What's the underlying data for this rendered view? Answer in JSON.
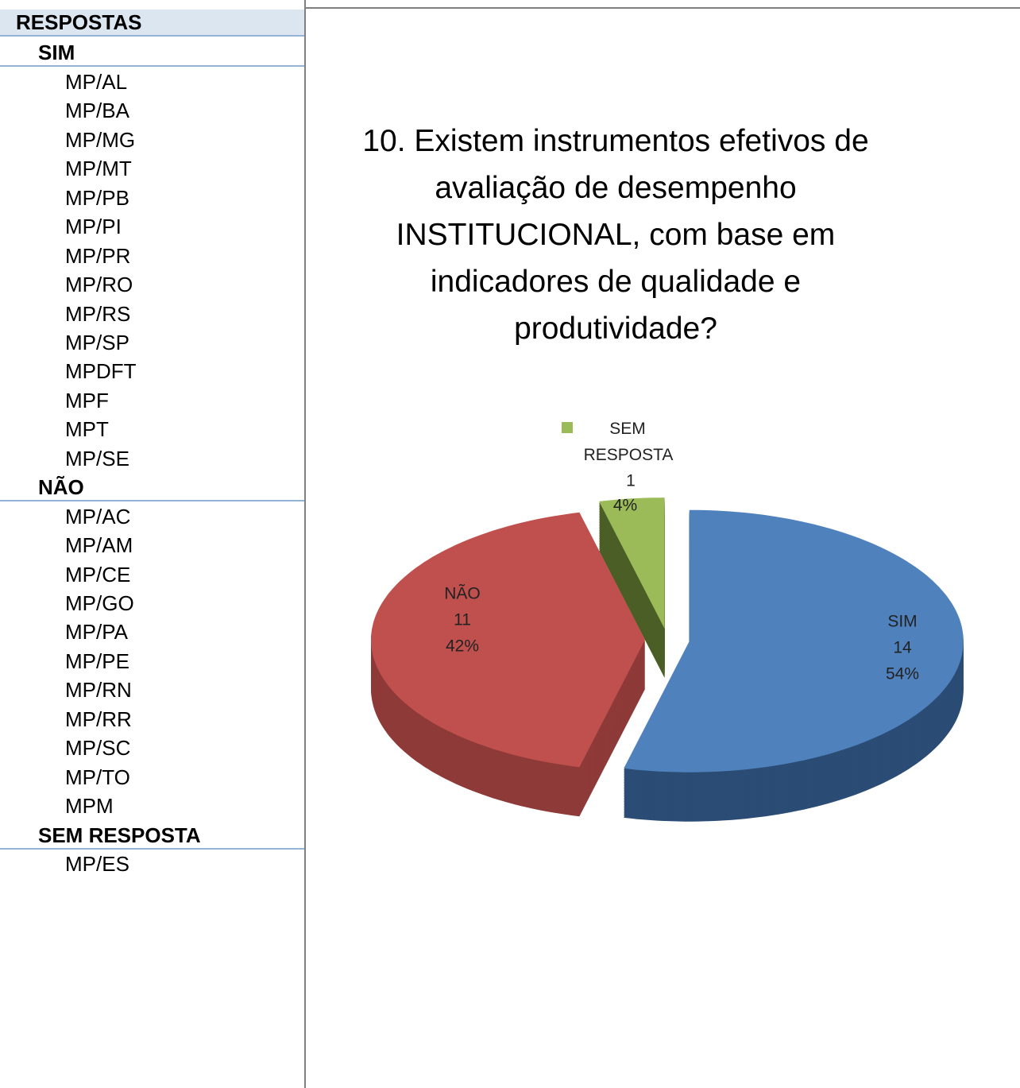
{
  "table": {
    "header": "RESPOSTAS",
    "groups": [
      {
        "name": "SIM",
        "items": [
          "MP/AL",
          "MP/BA",
          "MP/MG",
          "MP/MT",
          "MP/PB",
          "MP/PI",
          "MP/PR",
          "MP/RO",
          "MP/RS",
          "MP/SP",
          "MPDFT",
          "MPF",
          "MPT",
          "MP/SE"
        ]
      },
      {
        "name": "NÃO",
        "items": [
          "MP/AC",
          "MP/AM",
          "MP/CE",
          "MP/GO",
          "MP/PA",
          "MP/PE",
          "MP/RN",
          "MP/RR",
          "MP/SC",
          "MP/TO",
          "MPM"
        ]
      },
      {
        "name": "SEM RESPOSTA",
        "items": [
          "MP/ES"
        ]
      }
    ]
  },
  "chart_data": {
    "type": "pie3d",
    "title": "10. Existem instrumentos efetivos de avaliação de desempenho INSTITUCIONAL, com base em indicadores de qualidade e produtividade?",
    "categories": [
      "SIM",
      "NÃO",
      "SEM RESPOSTA"
    ],
    "values": [
      14,
      11,
      1
    ],
    "percent_labels": [
      "54%",
      "42%",
      "4%"
    ],
    "colors": [
      "#4f81bd",
      "#c0504d",
      "#9bbb59"
    ],
    "side_colors": [
      "#2b4c74",
      "#8e3a38",
      "#4a5e26"
    ]
  }
}
